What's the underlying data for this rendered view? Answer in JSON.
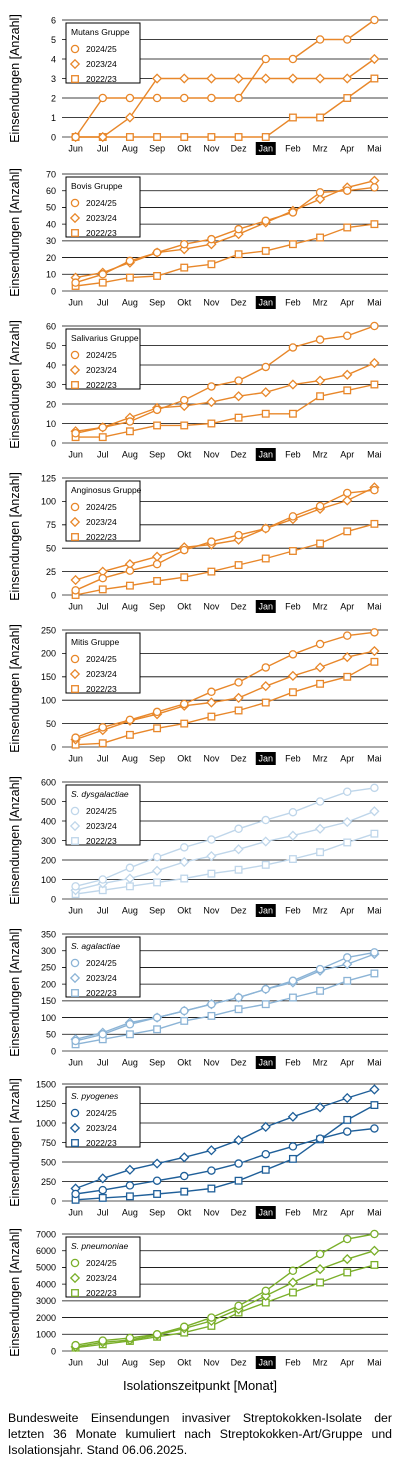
{
  "months": [
    "Jun",
    "Jul",
    "Aug",
    "Sep",
    "Okt",
    "Nov",
    "Dez",
    "Jan",
    "Feb",
    "Mrz",
    "Apr",
    "Mai"
  ],
  "highlight_month": "Jan",
  "y_axis_label": "Einsendungen [Anzahl]",
  "x_axis_label": "Isolationszeitpunkt [Monat]",
  "caption": "Bundesweite Einsendungen invasiver Streptokokken-Isolate der letzten 36 Monate kumuliert nach Streptokokken-Art/Gruppe und Isolationsjahr. Stand 06.06.2025.",
  "series_names": [
    "2024/25",
    "2023/24",
    "2022/23"
  ],
  "series_markers": [
    "circle",
    "diamond",
    "square"
  ],
  "chart_data": [
    {
      "type": "line",
      "title": "Mutans Gruppe",
      "italic": false,
      "color": "#E8872A",
      "ylim": [
        0,
        6
      ],
      "yticks": [
        0,
        1,
        2,
        3,
        4,
        5,
        6
      ],
      "categories": [
        "Jun",
        "Jul",
        "Aug",
        "Sep",
        "Okt",
        "Nov",
        "Dez",
        "Jan",
        "Feb",
        "Mrz",
        "Apr",
        "Mai"
      ],
      "series": [
        {
          "name": "2024/25",
          "values": [
            0,
            2,
            2,
            2,
            2,
            2,
            2,
            4,
            4,
            5,
            5,
            6
          ]
        },
        {
          "name": "2023/24",
          "values": [
            0,
            0,
            1,
            3,
            3,
            3,
            3,
            3,
            3,
            3,
            3,
            4
          ]
        },
        {
          "name": "2022/23",
          "values": [
            0,
            0,
            0,
            0,
            0,
            0,
            0,
            0,
            1,
            1,
            2,
            3
          ]
        }
      ]
    },
    {
      "type": "line",
      "title": "Bovis Gruppe",
      "italic": false,
      "color": "#E8872A",
      "ylim": [
        0,
        70
      ],
      "yticks": [
        0,
        10,
        20,
        30,
        40,
        50,
        60,
        70
      ],
      "categories": [
        "Jun",
        "Jul",
        "Aug",
        "Sep",
        "Okt",
        "Nov",
        "Dez",
        "Jan",
        "Feb",
        "Mrz",
        "Apr",
        "Mai"
      ],
      "series": [
        {
          "name": "2024/25",
          "values": [
            5,
            10,
            18,
            23,
            28,
            31,
            37,
            42,
            47,
            59,
            60,
            62
          ]
        },
        {
          "name": "2023/24",
          "values": [
            8,
            11,
            17,
            23,
            25,
            28,
            34,
            41,
            48,
            55,
            62,
            66
          ]
        },
        {
          "name": "2022/23",
          "values": [
            3,
            5,
            8,
            9,
            14,
            16,
            22,
            24,
            28,
            32,
            38,
            40
          ]
        }
      ]
    },
    {
      "type": "line",
      "title": "Salivarius Gruppe",
      "italic": false,
      "color": "#E8872A",
      "ylim": [
        0,
        60
      ],
      "yticks": [
        0,
        10,
        20,
        30,
        40,
        50,
        60
      ],
      "categories": [
        "Jun",
        "Jul",
        "Aug",
        "Sep",
        "Okt",
        "Nov",
        "Dez",
        "Jan",
        "Feb",
        "Mrz",
        "Apr",
        "Mai"
      ],
      "series": [
        {
          "name": "2024/25",
          "values": [
            5,
            8,
            11,
            17,
            22,
            29,
            32,
            39,
            49,
            53,
            55,
            60
          ]
        },
        {
          "name": "2023/24",
          "values": [
            6,
            8,
            13,
            18,
            19,
            21,
            24,
            26,
            30,
            32,
            35,
            41
          ]
        },
        {
          "name": "2022/23",
          "values": [
            3,
            3,
            6,
            9,
            9,
            10,
            13,
            15,
            15,
            24,
            27,
            30
          ]
        }
      ]
    },
    {
      "type": "line",
      "title": "Anginosus Gruppe",
      "italic": false,
      "color": "#E8872A",
      "ylim": [
        0,
        125
      ],
      "yticks": [
        0,
        25,
        50,
        75,
        100,
        125
      ],
      "categories": [
        "Jun",
        "Jul",
        "Aug",
        "Sep",
        "Okt",
        "Nov",
        "Dez",
        "Jan",
        "Feb",
        "Mrz",
        "Apr",
        "Mai"
      ],
      "series": [
        {
          "name": "2024/25",
          "values": [
            5,
            18,
            26,
            33,
            48,
            57,
            64,
            71,
            84,
            95,
            109,
            112
          ]
        },
        {
          "name": "2023/24",
          "values": [
            16,
            25,
            33,
            41,
            51,
            54,
            59,
            71,
            81,
            92,
            101,
            115
          ]
        },
        {
          "name": "2022/23",
          "values": [
            0,
            6,
            10,
            15,
            19,
            25,
            32,
            39,
            47,
            55,
            68,
            76
          ]
        }
      ]
    },
    {
      "type": "line",
      "title": "Mitis Gruppe",
      "italic": false,
      "color": "#E8872A",
      "ylim": [
        0,
        250
      ],
      "yticks": [
        0,
        50,
        100,
        150,
        200,
        250
      ],
      "categories": [
        "Jun",
        "Jul",
        "Aug",
        "Sep",
        "Okt",
        "Nov",
        "Dez",
        "Jan",
        "Feb",
        "Mrz",
        "Apr",
        "Mai"
      ],
      "series": [
        {
          "name": "2024/25",
          "values": [
            20,
            42,
            58,
            75,
            92,
            118,
            138,
            170,
            198,
            220,
            238,
            245
          ]
        },
        {
          "name": "2023/24",
          "values": [
            16,
            36,
            56,
            70,
            88,
            95,
            105,
            130,
            152,
            170,
            192,
            205
          ]
        },
        {
          "name": "2022/23",
          "values": [
            5,
            8,
            26,
            40,
            50,
            65,
            78,
            95,
            117,
            135,
            150,
            182
          ]
        }
      ]
    },
    {
      "type": "line",
      "title": "S. dysgalactiae",
      "italic": true,
      "color": "#BFD6EA",
      "ylim": [
        0,
        600
      ],
      "yticks": [
        0,
        100,
        200,
        300,
        400,
        500,
        600
      ],
      "categories": [
        "Jun",
        "Jul",
        "Aug",
        "Sep",
        "Okt",
        "Nov",
        "Dez",
        "Jan",
        "Feb",
        "Mrz",
        "Apr",
        "Mai"
      ],
      "series": [
        {
          "name": "2024/25",
          "values": [
            65,
            100,
            160,
            215,
            265,
            305,
            360,
            405,
            445,
            500,
            550,
            570
          ]
        },
        {
          "name": "2023/24",
          "values": [
            45,
            80,
            105,
            145,
            190,
            220,
            255,
            295,
            325,
            360,
            395,
            450
          ]
        },
        {
          "name": "2022/23",
          "values": [
            25,
            45,
            65,
            85,
            105,
            130,
            150,
            175,
            205,
            240,
            290,
            335
          ]
        }
      ]
    },
    {
      "type": "line",
      "title": "S. agalactiae",
      "italic": true,
      "color": "#8CB4D6",
      "ylim": [
        0,
        350
      ],
      "yticks": [
        0,
        50,
        100,
        150,
        200,
        250,
        300,
        350
      ],
      "categories": [
        "Jun",
        "Jul",
        "Aug",
        "Sep",
        "Okt",
        "Nov",
        "Dez",
        "Jan",
        "Feb",
        "Mrz",
        "Apr",
        "Mai"
      ],
      "series": [
        {
          "name": "2024/25",
          "values": [
            30,
            50,
            80,
            100,
            120,
            140,
            160,
            185,
            210,
            245,
            280,
            295
          ]
        },
        {
          "name": "2023/24",
          "values": [
            35,
            55,
            85,
            100,
            120,
            140,
            160,
            185,
            205,
            240,
            260,
            290
          ]
        },
        {
          "name": "2022/23",
          "values": [
            20,
            35,
            50,
            65,
            90,
            105,
            125,
            140,
            160,
            180,
            210,
            232
          ]
        }
      ]
    },
    {
      "type": "line",
      "title": "S. pyogenes",
      "italic": true,
      "color": "#1F5F99",
      "ylim": [
        0,
        1500
      ],
      "yticks": [
        0,
        250,
        500,
        750,
        1000,
        1250,
        1500
      ],
      "categories": [
        "Jun",
        "Jul",
        "Aug",
        "Sep",
        "Okt",
        "Nov",
        "Dez",
        "Jan",
        "Feb",
        "Mrz",
        "Apr",
        "Mai"
      ],
      "series": [
        {
          "name": "2024/25",
          "values": [
            90,
            140,
            200,
            260,
            320,
            390,
            480,
            600,
            700,
            800,
            890,
            930
          ]
        },
        {
          "name": "2023/24",
          "values": [
            160,
            290,
            400,
            480,
            560,
            650,
            780,
            950,
            1080,
            1200,
            1320,
            1430
          ]
        },
        {
          "name": "2022/23",
          "values": [
            15,
            40,
            60,
            90,
            120,
            160,
            260,
            400,
            540,
            790,
            1040,
            1230
          ]
        }
      ]
    },
    {
      "type": "line",
      "title": "S. pneumoniae",
      "italic": true,
      "color": "#7AAF2A",
      "ylim": [
        0,
        7000
      ],
      "yticks": [
        0,
        1000,
        2000,
        3000,
        4000,
        5000,
        6000,
        7000
      ],
      "categories": [
        "Jun",
        "Jul",
        "Aug",
        "Sep",
        "Okt",
        "Nov",
        "Dez",
        "Jan",
        "Feb",
        "Mrz",
        "Apr",
        "Mai"
      ],
      "series": [
        {
          "name": "2024/25",
          "values": [
            350,
            620,
            780,
            1000,
            1450,
            2000,
            2700,
            3600,
            4800,
            5800,
            6700,
            7000
          ]
        },
        {
          "name": "2023/24",
          "values": [
            250,
            520,
            660,
            950,
            1350,
            1800,
            2500,
            3300,
            4100,
            4900,
            5500,
            6000
          ]
        },
        {
          "name": "2022/23",
          "values": [
            200,
            400,
            600,
            850,
            1100,
            1500,
            2300,
            2900,
            3500,
            4100,
            4700,
            5150
          ]
        }
      ]
    }
  ]
}
